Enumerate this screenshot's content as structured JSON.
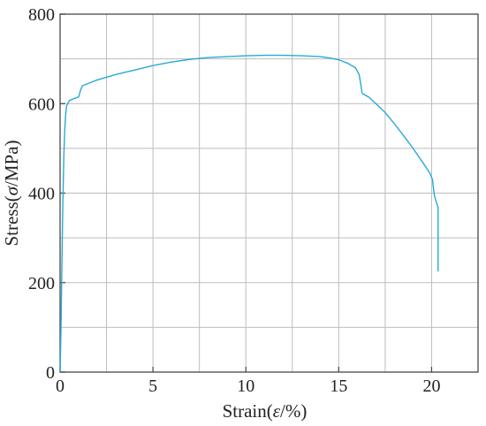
{
  "chart_data": {
    "type": "line",
    "xlabel": "Strain(ε/%)",
    "xlabel_prefix": "Strain(",
    "xlabel_symbol": "ε",
    "xlabel_suffix": "/%)",
    "ylabel": "Stress(σ/MPa)",
    "ylabel_prefix": "Stress(",
    "ylabel_symbol": "σ",
    "ylabel_suffix": "/MPa)",
    "xlim": [
      0,
      22.5
    ],
    "ylim": [
      0,
      800
    ],
    "x_ticks": [
      0,
      5,
      10,
      15,
      20
    ],
    "y_ticks": [
      0,
      200,
      400,
      600,
      800
    ],
    "x_grid": [
      0,
      2.5,
      5,
      7.5,
      10,
      12.5,
      15,
      17.5,
      20,
      22.5
    ],
    "y_grid": [
      0,
      100,
      200,
      300,
      400,
      500,
      600,
      700,
      800
    ],
    "grid": true,
    "line_color": "#29a8d8",
    "series": [
      {
        "x": [
          0,
          0.05,
          0.1,
          0.15,
          0.2,
          0.25,
          0.3,
          0.35,
          0.5,
          0.8,
          1.0,
          1.1,
          1.2,
          1.5,
          2,
          3,
          4,
          5,
          6,
          7,
          8,
          9,
          10,
          11,
          12,
          13,
          13.5,
          14,
          14.5,
          15,
          15.5,
          15.9,
          16.1,
          16.2,
          16.25,
          16.3,
          16.6,
          17,
          17.5,
          18,
          18.5,
          19,
          19.5,
          19.9,
          20.05,
          20.1,
          20.15,
          20.25,
          20.35,
          20.35,
          20.35
        ],
        "y": [
          0,
          100,
          250,
          380,
          480,
          540,
          575,
          595,
          607,
          612,
          615,
          630,
          640,
          645,
          653,
          665,
          675,
          685,
          693,
          699,
          703,
          705,
          707,
          708,
          708,
          707,
          706,
          705,
          702,
          698,
          690,
          680,
          665,
          640,
          625,
          622,
          615,
          600,
          580,
          555,
          528,
          500,
          470,
          445,
          430,
          410,
          395,
          380,
          368,
          300,
          225
        ]
      }
    ]
  }
}
